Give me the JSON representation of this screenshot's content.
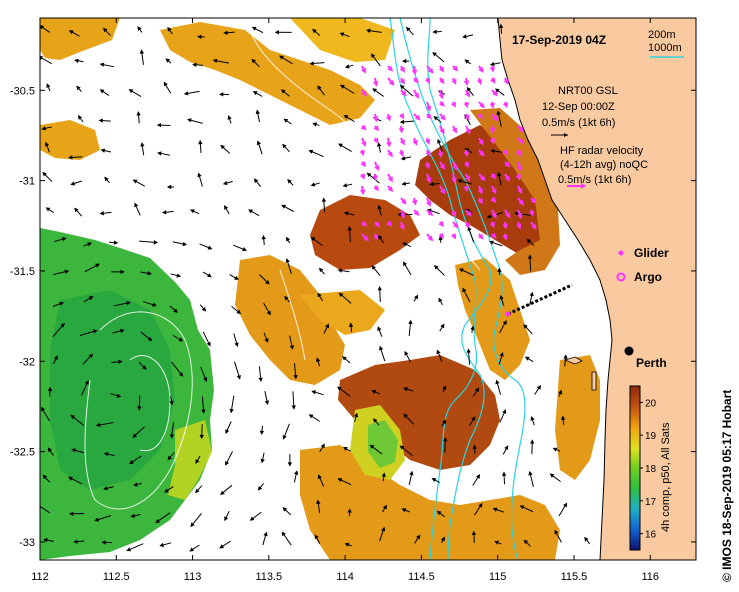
{
  "map": {
    "title": "17-Sep-2019 04Z",
    "side_label": "© IMOS 18-Sep-2019 05:17 Hobart",
    "axes": {
      "lon_ticks": [
        "112",
        "112.5",
        "113",
        "113.5",
        "114",
        "114.5",
        "115",
        "115.5",
        "116"
      ],
      "lat_ticks": [
        "-30.5",
        "-31",
        "-31.5",
        "-32",
        "-32.5",
        "-33"
      ],
      "lon_range": [
        112,
        116.3
      ],
      "lat_range": [
        -33.1,
        -30.1
      ]
    },
    "bathymetry_legend": {
      "line1": "200m",
      "line2": "1000m",
      "color": "#2ad4e0"
    },
    "gsl_legend": {
      "line1": "NRT00 GSL",
      "line2": "12-Sep 00:00Z",
      "line3": "0.5m/s (1kt 6h)"
    },
    "hf_legend": {
      "line1": "HF radar velocity",
      "line2": "(4-12h avg) noQC",
      "line3": "0.5m/s (1kt 6h)",
      "color": "#ff33ff"
    },
    "platform_legend": [
      {
        "name": "Glider",
        "color": "#ff33ff"
      },
      {
        "name": "Argo",
        "color": "#ff33ff"
      }
    ],
    "city": {
      "name": "Perth",
      "lon": 115.86,
      "lat": -31.95
    },
    "colorbar": {
      "label": "4h comp, p50, All Sats",
      "ticks": [
        "16",
        "17",
        "18",
        "19",
        "20"
      ],
      "min": 15.5,
      "max": 20.5,
      "colors": [
        "#101070",
        "#1060d0",
        "#20b0c0",
        "#30c040",
        "#70d020",
        "#e0e020",
        "#f0a010",
        "#c05010",
        "#8a2a0a"
      ]
    },
    "land_color": "#f9c9a0",
    "sst_layer": "sea surface temperature (°C)",
    "velocity_layer": "surface current vectors",
    "glider_track_layer": "glider track",
    "contour_layer": "temperature contours",
    "coastline_layer": "coastline"
  }
}
